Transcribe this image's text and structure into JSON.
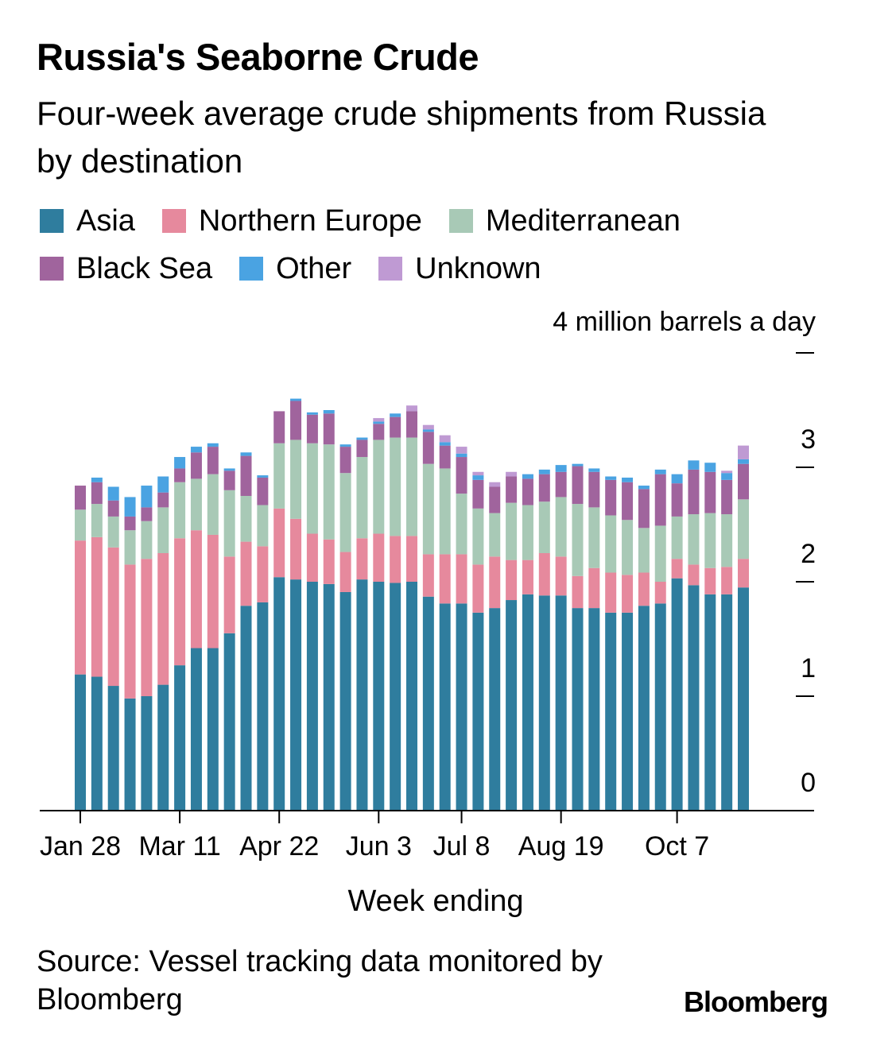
{
  "header": {
    "title": "Russia's Seaborne Crude",
    "subtitle": "Four-week average crude shipments from Russia by destination"
  },
  "legend": [
    {
      "label": "Asia",
      "color": "#2f7d9e"
    },
    {
      "label": "Northern Europe",
      "color": "#e6899d"
    },
    {
      "label": "Mediterranean",
      "color": "#a8c9b6"
    },
    {
      "label": "Black Sea",
      "color": "#a0649d"
    },
    {
      "label": "Other",
      "color": "#4aa3e2"
    },
    {
      "label": "Unknown",
      "color": "#bf9ad3"
    }
  ],
  "footer": {
    "source": "Source: Vessel tracking data monitored by Bloomberg",
    "brand": "Bloomberg"
  },
  "chart_data": {
    "type": "bar",
    "stacked": true,
    "ylabel": "4 million barrels a day",
    "xlabel": "Week ending",
    "ylim": [
      0,
      4
    ],
    "yticks": [
      0,
      1,
      2,
      3,
      4
    ],
    "ytick_labels": [
      "0",
      "1",
      "2",
      "3",
      ""
    ],
    "x_tick_labels": [
      {
        "label": "Jan 28",
        "index": 0
      },
      {
        "label": "Mar 11",
        "index": 6
      },
      {
        "label": "Apr 22",
        "index": 12
      },
      {
        "label": "Jun 3",
        "index": 18
      },
      {
        "label": "Jul 8",
        "index": 23
      },
      {
        "label": "Aug 19",
        "index": 29
      },
      {
        "label": "Oct 7",
        "index": 36
      }
    ],
    "bar_count": 41,
    "series": [
      {
        "name": "Asia",
        "color": "#2f7d9e",
        "values": [
          1.19,
          1.17,
          1.09,
          0.98,
          1.0,
          1.1,
          1.27,
          1.42,
          1.42,
          1.55,
          1.79,
          1.82,
          2.04,
          2.02,
          2.0,
          1.98,
          1.91,
          2.02,
          2.0,
          1.99,
          2.0,
          1.87,
          1.81,
          1.81,
          1.73,
          1.77,
          1.84,
          1.89,
          1.88,
          1.88,
          1.77,
          1.77,
          1.73,
          1.73,
          1.79,
          1.81,
          2.03,
          1.97,
          1.89,
          1.89,
          1.95
        ]
      },
      {
        "name": "Northern Europe",
        "color": "#e6899d",
        "values": [
          1.17,
          1.22,
          1.21,
          1.17,
          1.2,
          1.15,
          1.11,
          1.03,
          0.99,
          0.67,
          0.56,
          0.49,
          0.6,
          0.53,
          0.42,
          0.39,
          0.35,
          0.36,
          0.42,
          0.41,
          0.4,
          0.37,
          0.43,
          0.43,
          0.42,
          0.45,
          0.35,
          0.3,
          0.37,
          0.34,
          0.28,
          0.35,
          0.35,
          0.33,
          0.29,
          0.19,
          0.17,
          0.18,
          0.23,
          0.24,
          0.25
        ]
      },
      {
        "name": "Mediterranean",
        "color": "#a8c9b6",
        "values": [
          0.27,
          0.29,
          0.27,
          0.3,
          0.33,
          0.4,
          0.49,
          0.45,
          0.53,
          0.58,
          0.4,
          0.36,
          0.57,
          0.69,
          0.79,
          0.83,
          0.69,
          0.71,
          0.82,
          0.86,
          0.86,
          0.79,
          0.75,
          0.53,
          0.49,
          0.38,
          0.5,
          0.48,
          0.45,
          0.52,
          0.63,
          0.53,
          0.5,
          0.48,
          0.39,
          0.49,
          0.37,
          0.44,
          0.48,
          0.46,
          0.52
        ]
      },
      {
        "name": "Black Sea",
        "color": "#a0649d",
        "values": [
          0.21,
          0.19,
          0.14,
          0.12,
          0.12,
          0.13,
          0.12,
          0.23,
          0.24,
          0.17,
          0.35,
          0.24,
          0.28,
          0.34,
          0.25,
          0.27,
          0.23,
          0.15,
          0.14,
          0.18,
          0.23,
          0.28,
          0.2,
          0.32,
          0.25,
          0.23,
          0.23,
          0.23,
          0.24,
          0.22,
          0.33,
          0.31,
          0.31,
          0.33,
          0.34,
          0.45,
          0.29,
          0.39,
          0.36,
          0.3,
          0.31
        ]
      },
      {
        "name": "Other",
        "color": "#4aa3e2",
        "values": [
          0.0,
          0.04,
          0.12,
          0.17,
          0.19,
          0.14,
          0.1,
          0.05,
          0.03,
          0.02,
          0.03,
          0.02,
          0.0,
          0.02,
          0.02,
          0.03,
          0.02,
          0.02,
          0.02,
          0.03,
          0.0,
          0.02,
          0.03,
          0.03,
          0.04,
          0.0,
          0.0,
          0.04,
          0.04,
          0.06,
          0.02,
          0.03,
          0.03,
          0.04,
          0.03,
          0.04,
          0.08,
          0.08,
          0.08,
          0.06,
          0.04
        ]
      },
      {
        "name": "Unknown",
        "color": "#bf9ad3",
        "values": [
          0.0,
          0.0,
          0.0,
          0.0,
          0.0,
          0.0,
          0.0,
          0.0,
          0.0,
          0.0,
          0.0,
          0.0,
          0.0,
          0.0,
          0.0,
          0.0,
          0.0,
          0.0,
          0.03,
          0.0,
          0.05,
          0.04,
          0.06,
          0.06,
          0.03,
          0.04,
          0.04,
          0.0,
          0.0,
          0.0,
          0.0,
          0.0,
          0.0,
          0.0,
          0.0,
          0.0,
          0.0,
          0.0,
          0.0,
          0.02,
          0.12
        ]
      }
    ]
  }
}
